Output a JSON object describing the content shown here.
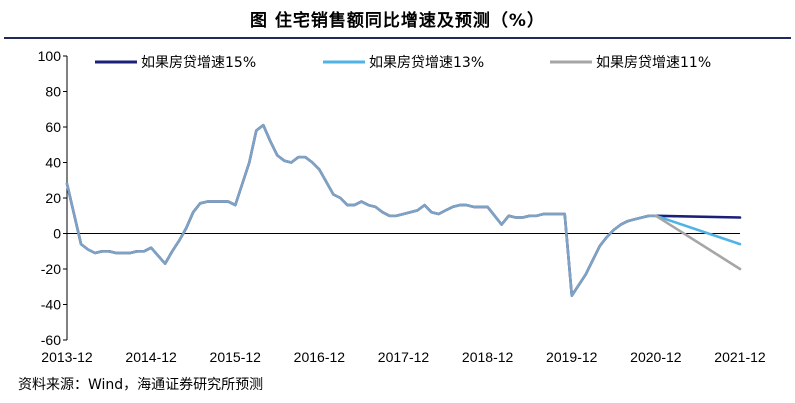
{
  "title": "图  住宅销售额同比增速及预测（%）",
  "source": "资料来源：Wind，海通证券研究所预测",
  "chart_data": {
    "type": "line",
    "title": "图  住宅销售额同比增速及预测（%）",
    "xlabel": "",
    "ylabel": "",
    "ylim": [
      -60,
      100
    ],
    "yticks": [
      -60,
      -40,
      -20,
      0,
      20,
      40,
      60,
      80,
      100
    ],
    "xlim": [
      "2013-12",
      "2021-12"
    ],
    "xticks": [
      "2013-12",
      "2014-12",
      "2015-12",
      "2016-12",
      "2017-12",
      "2018-12",
      "2019-12",
      "2020-12",
      "2021-12"
    ],
    "grid": false,
    "legend_position": "top",
    "history": {
      "x": [
        "2013-12",
        "2014-02",
        "2014-03",
        "2014-04",
        "2014-05",
        "2014-06",
        "2014-07",
        "2014-08",
        "2014-09",
        "2014-10",
        "2014-11",
        "2014-12",
        "2015-02",
        "2015-03",
        "2015-04",
        "2015-05",
        "2015-06",
        "2015-07",
        "2015-08",
        "2015-09",
        "2015-10",
        "2015-11",
        "2015-12",
        "2016-02",
        "2016-03",
        "2016-04",
        "2016-05",
        "2016-06",
        "2016-07",
        "2016-08",
        "2016-09",
        "2016-10",
        "2016-11",
        "2016-12",
        "2017-02",
        "2017-03",
        "2017-04",
        "2017-05",
        "2017-06",
        "2017-07",
        "2017-08",
        "2017-09",
        "2017-10",
        "2017-11",
        "2017-12",
        "2018-02",
        "2018-03",
        "2018-04",
        "2018-05",
        "2018-06",
        "2018-07",
        "2018-08",
        "2018-09",
        "2018-10",
        "2018-11",
        "2018-12",
        "2019-02",
        "2019-03",
        "2019-04",
        "2019-05",
        "2019-06",
        "2019-07",
        "2019-08",
        "2019-09",
        "2019-10",
        "2019-11",
        "2019-12",
        "2020-02",
        "2020-03",
        "2020-04",
        "2020-05",
        "2020-06",
        "2020-07",
        "2020-08",
        "2020-09",
        "2020-10",
        "2020-11",
        "2020-12"
      ],
      "y": [
        28,
        -6,
        -9,
        -11,
        -10,
        -10,
        -11,
        -11,
        -11,
        -10,
        -10,
        -8,
        -17,
        -10,
        -4,
        3,
        12,
        17,
        18,
        18,
        18,
        18,
        16,
        40,
        58,
        61,
        52,
        44,
        41,
        40,
        43,
        43,
        40,
        36,
        22,
        20,
        16,
        16,
        18,
        16,
        15,
        12,
        10,
        10,
        11,
        13,
        16,
        12,
        11,
        13,
        15,
        16,
        16,
        15,
        15,
        15,
        5,
        10,
        9,
        9,
        10,
        10,
        11,
        11,
        11,
        11,
        -35,
        -23,
        -15,
        -7,
        -2,
        2,
        5,
        7,
        8,
        9,
        10,
        10
      ],
      "color": "#7aa3c7"
    },
    "series": [
      {
        "name": "如果房贷增速15%",
        "color": "#1b1f7a",
        "x": [
          "2020-12",
          "2021-12"
        ],
        "values": [
          10,
          9
        ]
      },
      {
        "name": "如果房贷增速13%",
        "color": "#4fb3e6",
        "x": [
          "2020-12",
          "2021-12"
        ],
        "values": [
          10,
          -6
        ]
      },
      {
        "name": "如果房贷增速11%",
        "color": "#a6a6a6",
        "x": [
          "2020-12",
          "2021-12"
        ],
        "values": [
          10,
          -20
        ]
      }
    ]
  }
}
